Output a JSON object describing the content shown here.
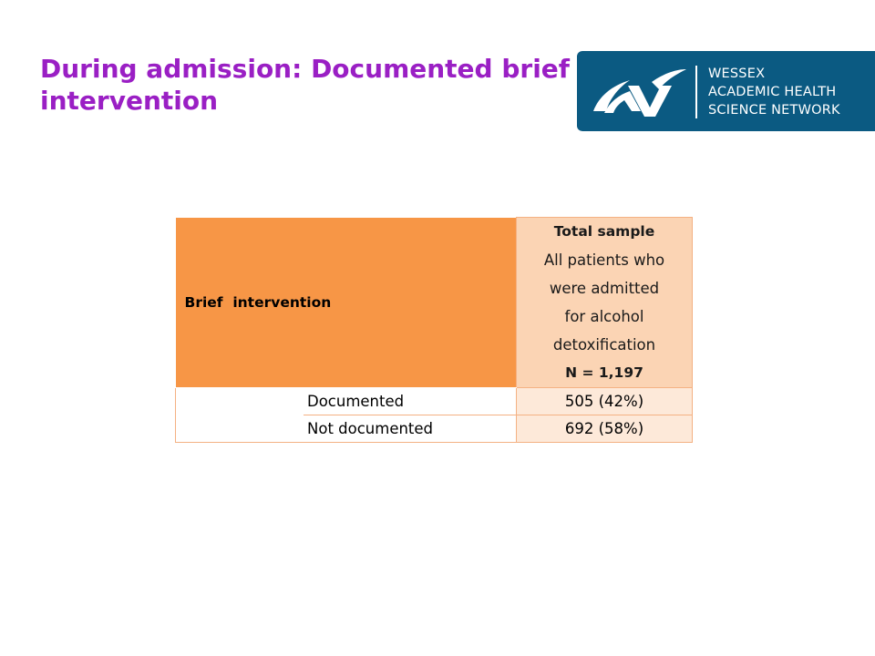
{
  "slide": {
    "title": "During admission: Documented brief intervention"
  },
  "logo": {
    "line1": "WESSEX",
    "line2": "ACADEMIC HEALTH",
    "line3": "SCIENCE NETWORK",
    "background_color": "#0b5a82"
  },
  "table": {
    "header_label": "Brief  intervention",
    "sample_title": "Total sample",
    "sample_desc_lines": [
      "All patients who",
      "were admitted",
      "for alcohol",
      "detoxification"
    ],
    "sample_n": "N = 1,197",
    "rows": [
      {
        "label": "Documented",
        "value": "505 (42%)"
      },
      {
        "label": "Not documented",
        "value": "692 (58%)"
      }
    ],
    "header_color": "#f79646",
    "sample_header_color": "#fbd4b4",
    "value_cell_color": "#fde9d9"
  }
}
